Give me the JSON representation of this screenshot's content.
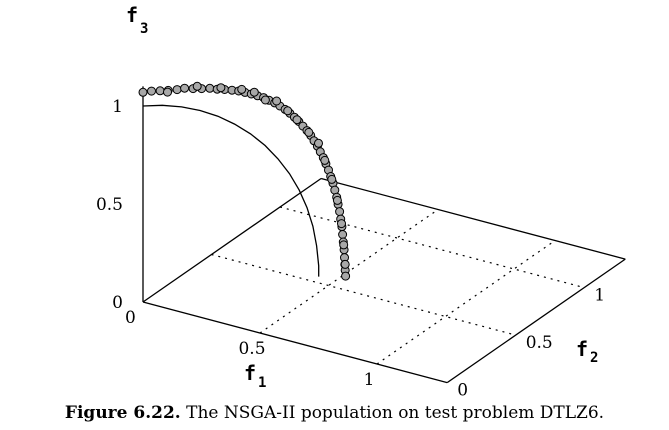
{
  "chart_data": {
    "type": "scatter",
    "projection": "3d",
    "axes": {
      "f1": {
        "name": "f",
        "sub": "1",
        "ticks": [
          "0",
          "0.5",
          "1"
        ],
        "range": [
          0,
          1.3
        ]
      },
      "f2": {
        "name": "f",
        "sub": "2",
        "ticks": [
          "0",
          "0.5",
          "1"
        ],
        "range": [
          0,
          1.3
        ]
      },
      "f3": {
        "name": "f",
        "sub": "3",
        "ticks": [
          "0",
          "0.5",
          "1"
        ],
        "range": [
          0,
          1.1
        ]
      }
    },
    "grid": true,
    "reference_curve": {
      "description": "Pareto-optimal front of DTLZ6",
      "points": [
        [
          0,
          0,
          1.0
        ],
        [
          0.052,
          0.052,
          0.995
        ],
        [
          0.104,
          0.104,
          0.978
        ],
        [
          0.154,
          0.154,
          0.951
        ],
        [
          0.202,
          0.202,
          0.914
        ],
        [
          0.247,
          0.247,
          0.866
        ],
        [
          0.29,
          0.29,
          0.809
        ],
        [
          0.329,
          0.329,
          0.743
        ],
        [
          0.364,
          0.364,
          0.669
        ],
        [
          0.395,
          0.395,
          0.588
        ],
        [
          0.421,
          0.421,
          0.5
        ],
        [
          0.442,
          0.442,
          0.407
        ],
        [
          0.458,
          0.458,
          0.309
        ],
        [
          0.468,
          0.468,
          0.208
        ],
        [
          0.4735,
          0.4735,
          0.105
        ],
        [
          0.4735,
          0.4735,
          0.05
        ]
      ]
    },
    "series": [
      {
        "points": [
          [
            0,
            0,
            1.07
          ],
          [
            0.023,
            0.023,
            1.072
          ],
          [
            0.046,
            0.046,
            1.07
          ],
          [
            0.068,
            0.068,
            1.068
          ],
          [
            0.092,
            0.092,
            1.068
          ],
          [
            0.112,
            0.112,
            1.072
          ],
          [
            0.135,
            0.135,
            1.066
          ],
          [
            0.158,
            0.158,
            1.062
          ],
          [
            0.18,
            0.18,
            1.06
          ],
          [
            0.2,
            0.2,
            1.052
          ],
          [
            0.22,
            0.22,
            1.047
          ],
          [
            0.24,
            0.24,
            1.04
          ],
          [
            0.258,
            0.258,
            1.033
          ],
          [
            0.275,
            0.275,
            1.023
          ],
          [
            0.292,
            0.292,
            1.012
          ],
          [
            0.309,
            0.309,
            1.0
          ],
          [
            0.325,
            0.325,
            0.988
          ],
          [
            0.34,
            0.34,
            0.972
          ],
          [
            0.355,
            0.355,
            0.956
          ],
          [
            0.369,
            0.369,
            0.938
          ],
          [
            0.383,
            0.383,
            0.918
          ],
          [
            0.396,
            0.396,
            0.896
          ],
          [
            0.408,
            0.408,
            0.874
          ],
          [
            0.42,
            0.42,
            0.85
          ],
          [
            0.431,
            0.431,
            0.825
          ],
          [
            0.442,
            0.442,
            0.8
          ],
          [
            0.452,
            0.452,
            0.774
          ],
          [
            0.461,
            0.461,
            0.745
          ],
          [
            0.47,
            0.47,
            0.716
          ],
          [
            0.478,
            0.478,
            0.686
          ],
          [
            0.486,
            0.486,
            0.655
          ],
          [
            0.493,
            0.493,
            0.622
          ],
          [
            0.5,
            0.5,
            0.589
          ],
          [
            0.506,
            0.506,
            0.555
          ],
          [
            0.512,
            0.512,
            0.52
          ],
          [
            0.517,
            0.517,
            0.484
          ],
          [
            0.522,
            0.522,
            0.447
          ],
          [
            0.526,
            0.526,
            0.41
          ],
          [
            0.53,
            0.53,
            0.372
          ],
          [
            0.533,
            0.533,
            0.333
          ],
          [
            0.536,
            0.536,
            0.294
          ],
          [
            0.538,
            0.538,
            0.254
          ],
          [
            0.54,
            0.54,
            0.215
          ],
          [
            0.542,
            0.542,
            0.175
          ],
          [
            0.543,
            0.543,
            0.135
          ],
          [
            0.544,
            0.544,
            0.1
          ],
          [
            0.545,
            0.545,
            0.07
          ],
          [
            0.546,
            0.546,
            0.04
          ],
          [
            0.066,
            0.066,
            1.06
          ],
          [
            0.146,
            0.146,
            1.076
          ],
          [
            0.21,
            0.21,
            1.058
          ],
          [
            0.266,
            0.266,
            1.04
          ],
          [
            0.3,
            0.3,
            1.02
          ],
          [
            0.33,
            0.33,
            0.975
          ],
          [
            0.36,
            0.36,
            0.965
          ],
          [
            0.39,
            0.39,
            0.91
          ],
          [
            0.415,
            0.415,
            0.86
          ],
          [
            0.447,
            0.447,
            0.79
          ],
          [
            0.473,
            0.473,
            0.73
          ],
          [
            0.49,
            0.49,
            0.64
          ],
          [
            0.509,
            0.509,
            0.54
          ],
          [
            0.524,
            0.524,
            0.43
          ],
          [
            0.535,
            0.535,
            0.31
          ],
          [
            0.541,
            0.541,
            0.2
          ],
          [
            0.545,
            0.545,
            0.1
          ]
        ],
        "marker": "circle",
        "fill": "#a8a8a8",
        "stroke": "#000000"
      }
    ]
  },
  "caption": {
    "label": "Figure 6.22.",
    "text": "The NSGA-II population on test problem DTLZ6."
  }
}
